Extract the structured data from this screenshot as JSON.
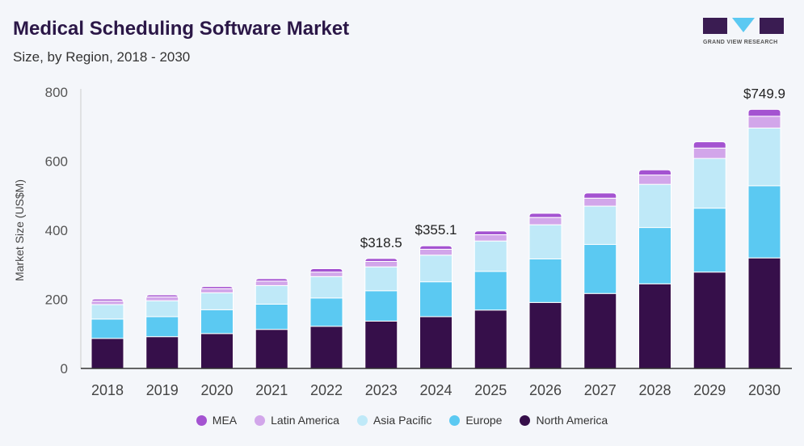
{
  "header": {
    "title": "Medical Scheduling Software Market",
    "subtitle": "Size, by Region, 2018 - 2030"
  },
  "logo": {
    "text": "GRAND VIEW RESEARCH"
  },
  "chart_data": {
    "type": "bar",
    "stacked": true,
    "ylabel": "Market Size (US$M)",
    "xlabel": "",
    "ylim": [
      0,
      800
    ],
    "yticks": [
      0,
      200,
      400,
      600,
      800
    ],
    "grid": false,
    "legend_position": "bottom",
    "categories": [
      "2018",
      "2019",
      "2020",
      "2021",
      "2022",
      "2023",
      "2024",
      "2025",
      "2026",
      "2027",
      "2028",
      "2029",
      "2030"
    ],
    "series": [
      {
        "name": "North America",
        "color": "#360f4a",
        "values": [
          87,
          92,
          101,
          113,
          122,
          137,
          150,
          169,
          191,
          217,
          245,
          279,
          320
        ]
      },
      {
        "name": "Europe",
        "color": "#5bc9f2",
        "values": [
          56,
          58,
          69,
          73,
          82,
          88,
          101,
          112,
          126,
          142,
          163,
          185,
          209
        ]
      },
      {
        "name": "Asia Pacific",
        "color": "#bfe9f8",
        "values": [
          42,
          46,
          49,
          54,
          62,
          69,
          77,
          88,
          99,
          111,
          125,
          144,
          167
        ]
      },
      {
        "name": "Latin America",
        "color": "#d2a6ea",
        "values": [
          10,
          11,
          12,
          13,
          13,
          16,
          17,
          18,
          21,
          23,
          27,
          30,
          34
        ]
      },
      {
        "name": "MEA",
        "color": "#a453d1",
        "values": [
          6,
          6,
          6,
          7,
          10,
          8.5,
          10.1,
          11,
          12,
          15,
          15,
          18,
          19.9
        ]
      }
    ],
    "legend_order": [
      "MEA",
      "Latin America",
      "Asia Pacific",
      "Europe",
      "North America"
    ],
    "annotations": [
      {
        "category": "2023",
        "label": "$318.5"
      },
      {
        "category": "2024",
        "label": "$355.1"
      },
      {
        "category": "2030",
        "label": "$749.9"
      }
    ]
  }
}
